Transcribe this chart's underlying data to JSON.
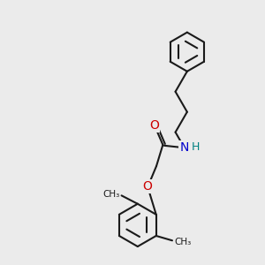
{
  "bg_color": "#ebebeb",
  "bond_color": "#1a1a1a",
  "N_color": "#0000cc",
  "O_color": "#cc0000",
  "H_color": "#008080",
  "bond_width": 1.5,
  "figsize": [
    3.0,
    3.0
  ],
  "dpi": 100,
  "xlim": [
    0,
    10
  ],
  "ylim": [
    0,
    10
  ]
}
